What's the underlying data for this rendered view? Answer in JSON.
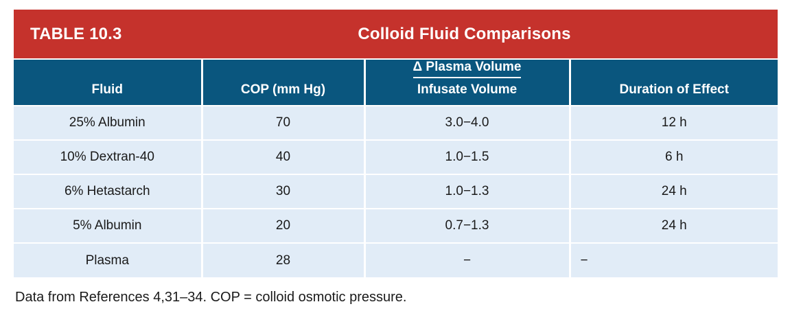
{
  "header": {
    "label": "TABLE 10.3",
    "title": "Colloid Fluid Comparisons"
  },
  "columns": {
    "fluid": "Fluid",
    "cop": "COP (mm Hg)",
    "ratio_top": "Δ Plasma Volume",
    "ratio_bottom": "Infusate Volume",
    "duration": "Duration of Effect"
  },
  "rows": [
    {
      "fluid": "25% Albumin",
      "cop": "70",
      "ratio": "3.0−4.0",
      "duration": "12 h"
    },
    {
      "fluid": "10% Dextran-40",
      "cop": "40",
      "ratio": "1.0−1.5",
      "duration": "6 h"
    },
    {
      "fluid": "6% Hetastarch",
      "cop": "30",
      "ratio": "1.0−1.3",
      "duration": "24 h"
    },
    {
      "fluid": "5% Albumin",
      "cop": "20",
      "ratio": "0.7−1.3",
      "duration": "24 h"
    },
    {
      "fluid": "Plasma",
      "cop": "28",
      "ratio": "−",
      "duration": "−"
    }
  ],
  "footnote": "Data from References 4,31–34. COP = colloid osmotic pressure.",
  "colors": {
    "accent_red": "#c5322c",
    "header_blue": "#0a567e",
    "row_blue": "#e1ecf7",
    "text_dark": "#1a1a1a"
  },
  "chart_data": {
    "type": "table",
    "title": "Colloid Fluid Comparisons",
    "table_label": "TABLE 10.3",
    "columns": [
      "Fluid",
      "COP (mm Hg)",
      "Δ Plasma Volume / Infusate Volume",
      "Duration of Effect"
    ],
    "rows": [
      [
        "25% Albumin",
        70,
        "3.0−4.0",
        "12 h"
      ],
      [
        "10% Dextran-40",
        40,
        "1.0−1.5",
        "6 h"
      ],
      [
        "6% Hetastarch",
        30,
        "1.0−1.3",
        "24 h"
      ],
      [
        "5% Albumin",
        20,
        "0.7−1.3",
        "24 h"
      ],
      [
        "Plasma",
        28,
        "−",
        "−"
      ]
    ],
    "footnote": "Data from References 4,31–34. COP = colloid osmotic pressure."
  }
}
